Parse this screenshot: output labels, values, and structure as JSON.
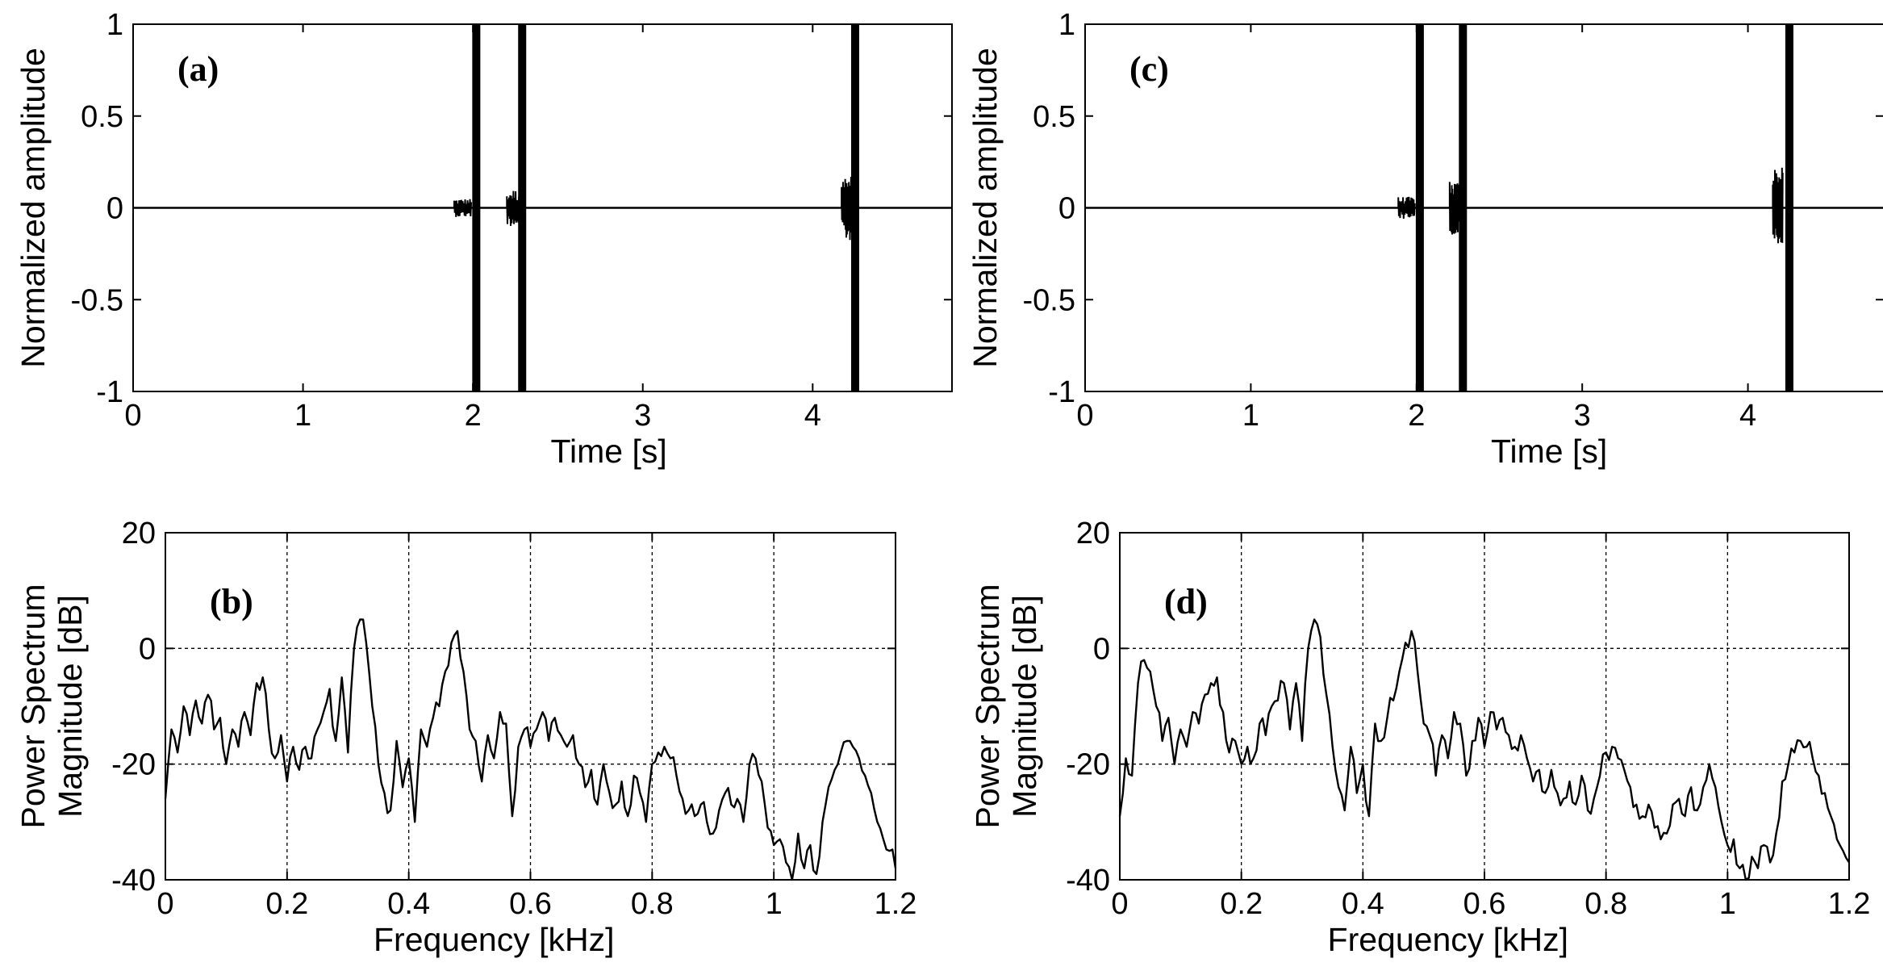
{
  "chart_data": [
    {
      "type": "line",
      "panel_label": "(a)",
      "xlabel": "Time [s]",
      "ylabel": "Normalized amplitude",
      "xlim": [
        0,
        4.82
      ],
      "ylim": [
        -1,
        1
      ],
      "xticks": [
        0,
        1,
        2,
        3,
        4
      ],
      "yticks": [
        -1,
        -0.5,
        0,
        0.5,
        1
      ],
      "ytick_labels": [
        "-1",
        "-0.5",
        "0",
        "0.5",
        "1"
      ],
      "grid": false,
      "bursts": [
        {
          "t": 1.95,
          "pre_span": 0.06,
          "amp": 0.05
        },
        {
          "t": 2.02,
          "pre_span": 0.0,
          "amp": 1.0
        },
        {
          "t": 2.25,
          "pre_span": 0.05,
          "amp": 0.1
        },
        {
          "t": 2.29,
          "pre_span": 0.0,
          "amp": 1.0
        },
        {
          "t": 4.19,
          "pre_span": 0.02,
          "amp": 0.18
        },
        {
          "t": 4.25,
          "pre_span": 0.0,
          "amp": 1.0
        }
      ]
    },
    {
      "type": "line",
      "panel_label": "(b)",
      "xlabel": "Frequency [kHz]",
      "ylabel": "Power Spectrum\nMagnitude [dB]",
      "xlim": [
        0,
        1.2
      ],
      "ylim": [
        -40,
        20
      ],
      "xticks": [
        0,
        0.2,
        0.4,
        0.6,
        0.8,
        1,
        1.2
      ],
      "yticks": [
        -40,
        -20,
        0,
        20
      ],
      "grid": true,
      "series": [
        {
          "x": [
            0,
            0.01,
            0.02,
            0.03,
            0.04,
            0.05,
            0.06,
            0.07,
            0.08,
            0.09,
            0.1,
            0.11,
            0.12,
            0.13,
            0.14,
            0.15,
            0.16,
            0.17,
            0.18,
            0.19,
            0.2,
            0.21,
            0.22,
            0.23,
            0.24,
            0.25,
            0.26,
            0.27,
            0.28,
            0.29,
            0.3,
            0.31,
            0.32,
            0.33,
            0.34,
            0.35,
            0.36,
            0.37,
            0.38,
            0.39,
            0.4,
            0.41,
            0.42,
            0.43,
            0.44,
            0.45,
            0.46,
            0.47,
            0.48,
            0.49,
            0.5,
            0.51,
            0.52,
            0.53,
            0.54,
            0.55,
            0.56,
            0.57,
            0.58,
            0.59,
            0.6,
            0.61,
            0.62,
            0.63,
            0.64,
            0.65,
            0.66,
            0.67,
            0.68,
            0.69,
            0.7,
            0.71,
            0.72,
            0.73,
            0.74,
            0.75,
            0.76,
            0.77,
            0.78,
            0.79,
            0.8,
            0.81,
            0.82,
            0.83,
            0.84,
            0.85,
            0.86,
            0.87,
            0.88,
            0.89,
            0.9,
            0.91,
            0.92,
            0.93,
            0.94,
            0.95,
            0.96,
            0.97,
            0.98,
            0.99,
            1.0,
            1.01,
            1.02,
            1.03,
            1.04,
            1.05,
            1.06,
            1.07,
            1.08,
            1.09,
            1.1,
            1.11,
            1.12,
            1.13,
            1.14,
            1.15,
            1.16,
            1.17,
            1.18,
            1.19,
            1.2
          ],
          "y": [
            -26,
            -14,
            -18,
            -10,
            -15,
            -9,
            -13,
            -8,
            -14,
            -12,
            -20,
            -14,
            -17,
            -11,
            -15,
            -6,
            -5,
            -14,
            -19,
            -15,
            -23,
            -17,
            -21,
            -17,
            -19,
            -14,
            -11,
            -7,
            -16,
            -5,
            -18,
            0,
            5,
            1,
            -10,
            -20,
            -25,
            -28,
            -16,
            -24,
            -19,
            -30,
            -14,
            -17,
            -12,
            -10,
            -4,
            1,
            3,
            -4,
            -14,
            -16,
            -23,
            -15,
            -19,
            -11,
            -13,
            -29,
            -17,
            -14,
            -17,
            -14,
            -11,
            -16,
            -12,
            -15,
            -17,
            -15,
            -20,
            -24,
            -21,
            -27,
            -20,
            -25,
            -27,
            -23,
            -29,
            -22,
            -25,
            -30,
            -20,
            -18,
            -17,
            -19,
            -22,
            -26,
            -28,
            -29,
            -27,
            -30,
            -32,
            -28,
            -25,
            -27,
            -26,
            -30,
            -20,
            -19,
            -23,
            -31,
            -34,
            -33,
            -37,
            -40,
            -32,
            -38,
            -34,
            -39,
            -30,
            -24,
            -21,
            -18,
            -16,
            -17,
            -19,
            -22,
            -25,
            -30,
            -33,
            -35,
            -38
          ]
        }
      ]
    },
    {
      "type": "line",
      "panel_label": "(c)",
      "xlabel": "Time [s]",
      "ylabel": "Normalized amplitude",
      "xlim": [
        0,
        4.82
      ],
      "ylim": [
        -1,
        1
      ],
      "xticks": [
        0,
        1,
        2,
        3,
        4
      ],
      "yticks": [
        -1,
        -0.5,
        0,
        0.5,
        1
      ],
      "ytick_labels": [
        "-1",
        "-0.5",
        "0",
        "0.5",
        "1"
      ],
      "grid": false,
      "bursts": [
        {
          "t": 1.95,
          "pre_span": 0.06,
          "amp": 0.06
        },
        {
          "t": 2.02,
          "pre_span": 0.0,
          "amp": 1.0
        },
        {
          "t": 2.22,
          "pre_span": 0.02,
          "amp": 0.15
        },
        {
          "t": 2.28,
          "pre_span": 0.0,
          "amp": 1.0
        },
        {
          "t": 4.17,
          "pre_span": 0.02,
          "amp": 0.22
        },
        {
          "t": 4.25,
          "pre_span": 0.0,
          "amp": 1.0
        }
      ]
    },
    {
      "type": "line",
      "panel_label": "(d)",
      "xlabel": "Frequency [kHz]",
      "ylabel": "Power Spectrum\nMagnitude [dB]",
      "xlim": [
        0,
        1.2
      ],
      "ylim": [
        -40,
        20
      ],
      "xticks": [
        0,
        0.2,
        0.4,
        0.6,
        0.8,
        1,
        1.2
      ],
      "yticks": [
        -40,
        -20,
        0,
        20
      ],
      "grid": true,
      "series": [
        {
          "x": [
            0,
            0.01,
            0.02,
            0.03,
            0.04,
            0.05,
            0.06,
            0.07,
            0.08,
            0.09,
            0.1,
            0.11,
            0.12,
            0.13,
            0.14,
            0.15,
            0.16,
            0.17,
            0.18,
            0.19,
            0.2,
            0.21,
            0.22,
            0.23,
            0.24,
            0.25,
            0.26,
            0.27,
            0.28,
            0.29,
            0.3,
            0.31,
            0.32,
            0.33,
            0.34,
            0.35,
            0.36,
            0.37,
            0.38,
            0.39,
            0.4,
            0.41,
            0.42,
            0.43,
            0.44,
            0.45,
            0.46,
            0.47,
            0.48,
            0.49,
            0.5,
            0.51,
            0.52,
            0.53,
            0.54,
            0.55,
            0.56,
            0.57,
            0.58,
            0.59,
            0.6,
            0.61,
            0.62,
            0.63,
            0.64,
            0.65,
            0.66,
            0.67,
            0.68,
            0.69,
            0.7,
            0.71,
            0.72,
            0.73,
            0.74,
            0.75,
            0.76,
            0.77,
            0.78,
            0.79,
            0.8,
            0.81,
            0.82,
            0.83,
            0.84,
            0.85,
            0.86,
            0.87,
            0.88,
            0.89,
            0.9,
            0.91,
            0.92,
            0.93,
            0.94,
            0.95,
            0.96,
            0.97,
            0.98,
            0.99,
            1.0,
            1.01,
            1.02,
            1.03,
            1.04,
            1.05,
            1.06,
            1.07,
            1.08,
            1.09,
            1.1,
            1.11,
            1.12,
            1.13,
            1.14,
            1.15,
            1.16,
            1.17,
            1.18,
            1.19,
            1.2
          ],
          "y": [
            -29,
            -19,
            -22,
            -6,
            -2,
            -4,
            -10,
            -16,
            -12,
            -20,
            -14,
            -17,
            -11,
            -13,
            -8,
            -6,
            -5,
            -11,
            -18,
            -16,
            -20,
            -17,
            -19,
            -13,
            -15,
            -10,
            -9,
            -6,
            -14,
            -6,
            -16,
            0,
            5,
            2,
            -8,
            -17,
            -24,
            -28,
            -17,
            -25,
            -20,
            -29,
            -13,
            -16,
            -12,
            -9,
            -4,
            1,
            3,
            -4,
            -13,
            -15,
            -22,
            -15,
            -19,
            -11,
            -13,
            -22,
            -16,
            -12,
            -17,
            -11,
            -14,
            -12,
            -15,
            -17,
            -15,
            -19,
            -23,
            -21,
            -25,
            -21,
            -25,
            -26,
            -23,
            -27,
            -22,
            -28,
            -26,
            -22,
            -18,
            -17,
            -19,
            -21,
            -24,
            -27,
            -29,
            -27,
            -31,
            -33,
            -32,
            -27,
            -26,
            -29,
            -24,
            -28,
            -24,
            -20,
            -24,
            -30,
            -34,
            -33,
            -38,
            -40,
            -36,
            -38,
            -34,
            -37,
            -32,
            -23,
            -20,
            -18,
            -16,
            -17,
            -19,
            -22,
            -25,
            -29,
            -33,
            -35,
            -37
          ]
        }
      ]
    }
  ]
}
